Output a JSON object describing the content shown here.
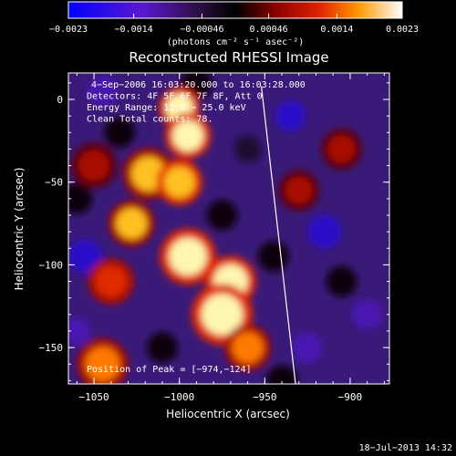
{
  "chart_data": {
    "type": "heatmap",
    "title": "Reconstructed RHESSI Image",
    "xlabel": "Heliocentric X (arcsec)",
    "ylabel": "Heliocentric Y (arcsec)",
    "xlim": [
      -1065,
      -877
    ],
    "ylim": [
      -172,
      16
    ],
    "x_ticks": [
      -1050,
      -1000,
      -950,
      -900
    ],
    "x_tick_labels": [
      "−1050",
      "−1000",
      "−950",
      "−900"
    ],
    "y_ticks": [
      0,
      -50,
      -100,
      -150
    ],
    "y_tick_labels": [
      "0",
      "−50",
      "−100",
      "−150"
    ],
    "colorbar": {
      "min": -0.0023,
      "max": 0.0023,
      "ticks": [
        -0.0023,
        -0.0014,
        -0.00046,
        0.00046,
        0.0014,
        0.0023
      ],
      "tick_labels": [
        "−0.0023",
        "−0.0014",
        "−0.00046",
        "0.00046",
        "0.0014",
        "0.0023"
      ],
      "units": "(photons cm⁻² s⁻¹ asec⁻²)",
      "colormap": "blue-purple-black-red-yellow-white"
    },
    "annotations": [
      "4−Sep−2006 16:03:20.000 to 16:03:28.000",
      "Detectors: 4F 5F 6F 7F 8F, Att 0",
      "Energy Range: 12.0 − 25.0 keV",
      "Clean     Total counts: 78."
    ],
    "peak_label": "Position of Peak = [−974,−124]",
    "peak": [
      -974,
      -124
    ],
    "limb_line": [
      [
        -952,
        8
      ],
      [
        -932,
        -172
      ]
    ],
    "hot_spots": [
      [
        -1000,
        -5,
        8,
        1.0
      ],
      [
        -995,
        -22,
        9,
        0.95
      ],
      [
        -1018,
        -45,
        10,
        0.8
      ],
      [
        -1000,
        -50,
        9,
        0.85
      ],
      [
        -1028,
        -75,
        9,
        0.75
      ],
      [
        -995,
        -95,
        11,
        1.0
      ],
      [
        -970,
        -110,
        10,
        0.95
      ],
      [
        -975,
        -130,
        12,
        1.0
      ],
      [
        -1040,
        -110,
        9,
        0.55
      ],
      [
        -1045,
        -160,
        10,
        0.6
      ],
      [
        -960,
        -150,
        9,
        0.7
      ],
      [
        -930,
        -55,
        8,
        0.35
      ],
      [
        -905,
        -30,
        8,
        0.25
      ],
      [
        -1050,
        -40,
        9,
        0.3
      ]
    ],
    "cold_spots": [
      [
        -1055,
        -95,
        10,
        -0.7
      ],
      [
        -1045,
        5,
        9,
        -0.5
      ],
      [
        -935,
        -10,
        9,
        -0.75
      ],
      [
        -915,
        -80,
        10,
        -0.65
      ],
      [
        -890,
        -130,
        9,
        -0.6
      ],
      [
        -925,
        -150,
        9,
        -0.55
      ],
      [
        -1060,
        -140,
        8,
        -0.45
      ],
      [
        -960,
        -30,
        8,
        -0.4
      ]
    ]
  },
  "footer": {
    "date": "18−Jul−2013 14:32"
  }
}
